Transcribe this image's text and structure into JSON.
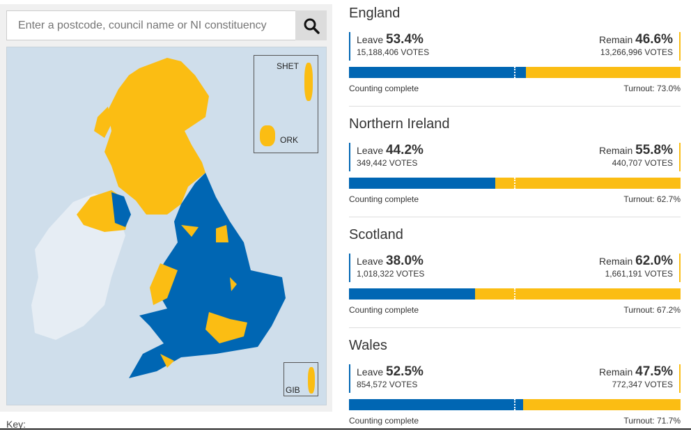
{
  "search": {
    "placeholder": "Enter a postcode, council name or NI constituency"
  },
  "map": {
    "insets": {
      "shetland": "SHET",
      "orkney": "ORK",
      "gibraltar": "GIB"
    }
  },
  "key_label": "Key:",
  "colors": {
    "leave": "#0066b3",
    "remain": "#fbbd13",
    "map_bg": "#cfdeeb"
  },
  "regions": [
    {
      "name": "England",
      "leave_label": "Leave",
      "leave_pct": "53.4%",
      "leave_votes": "15,188,406 VOTES",
      "remain_label": "Remain",
      "remain_pct": "46.6%",
      "remain_votes": "13,266,996 VOTES",
      "leave_share": 53.4,
      "status": "Counting complete",
      "turnout": "Turnout: 73.0%"
    },
    {
      "name": "Northern Ireland",
      "leave_label": "Leave",
      "leave_pct": "44.2%",
      "leave_votes": "349,442 VOTES",
      "remain_label": "Remain",
      "remain_pct": "55.8%",
      "remain_votes": "440,707 VOTES",
      "leave_share": 44.2,
      "status": "Counting complete",
      "turnout": "Turnout: 62.7%"
    },
    {
      "name": "Scotland",
      "leave_label": "Leave",
      "leave_pct": "38.0%",
      "leave_votes": "1,018,322 VOTES",
      "remain_label": "Remain",
      "remain_pct": "62.0%",
      "remain_votes": "1,661,191 VOTES",
      "leave_share": 38.0,
      "status": "Counting complete",
      "turnout": "Turnout: 67.2%"
    },
    {
      "name": "Wales",
      "leave_label": "Leave",
      "leave_pct": "52.5%",
      "leave_votes": "854,572 VOTES",
      "remain_label": "Remain",
      "remain_pct": "47.5%",
      "remain_votes": "772,347 VOTES",
      "leave_share": 52.5,
      "status": "Counting complete",
      "turnout": "Turnout: 71.7%"
    }
  ]
}
